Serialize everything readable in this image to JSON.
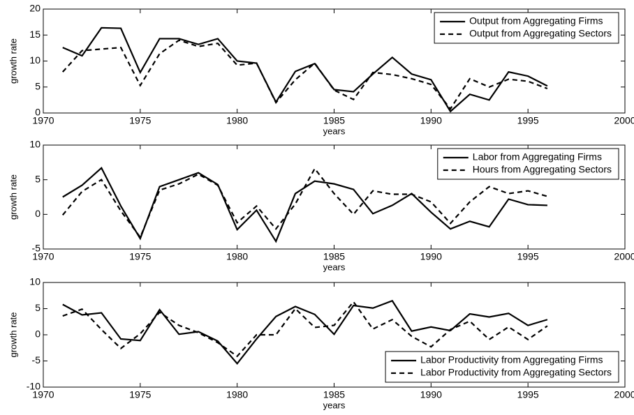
{
  "chart_data": [
    {
      "type": "line",
      "ylabel": "growth rate",
      "xlabel": "years",
      "legend": "upper right",
      "x": [
        1971,
        1972,
        1973,
        1974,
        1975,
        1976,
        1977,
        1978,
        1979,
        1980,
        1981,
        1982,
        1983,
        1984,
        1985,
        1986,
        1987,
        1988,
        1989,
        1990,
        1991,
        1992,
        1993,
        1994,
        1995,
        1996
      ],
      "xlim": [
        1970,
        2000
      ],
      "xticks": [
        1970,
        1975,
        1980,
        1985,
        1990,
        1995,
        2000
      ],
      "ylim": [
        0,
        20
      ],
      "yticks": [
        0,
        5,
        10,
        15,
        20
      ],
      "series": [
        {
          "name": "Output from Aggregating Firms",
          "color": "#000000",
          "linestyle": "solid",
          "values": [
            12.6,
            11,
            16.4,
            16.3,
            7.8,
            14.3,
            14.3,
            13.2,
            14.3,
            10,
            9.6,
            2.1,
            8,
            9.5,
            4.5,
            4.1,
            7.5,
            10.7,
            7.5,
            6.4,
            0.3,
            3.6,
            2.5,
            7.9,
            7.1,
            5.2
          ]
        },
        {
          "name": "Output from Aggregating Sectors",
          "color": "#000000",
          "linestyle": "dashed",
          "values": [
            7.9,
            12,
            12.3,
            12.6,
            5.3,
            11.4,
            14,
            12.8,
            13.4,
            9.2,
            9.6,
            2.0,
            6.4,
            9.6,
            4.4,
            2.6,
            7.8,
            7.4,
            6.6,
            5.5,
            0.8,
            6.6,
            5.0,
            6.5,
            6.1,
            4.7
          ]
        }
      ]
    },
    {
      "type": "line",
      "ylabel": "growth rate",
      "xlabel": "years",
      "legend": "upper right",
      "x": [
        1971,
        1972,
        1973,
        1974,
        1975,
        1976,
        1977,
        1978,
        1979,
        1980,
        1981,
        1982,
        1983,
        1984,
        1985,
        1986,
        1987,
        1988,
        1989,
        1990,
        1991,
        1992,
        1993,
        1994,
        1995,
        1996
      ],
      "xlim": [
        1970,
        2000
      ],
      "xticks": [
        1970,
        1975,
        1980,
        1985,
        1990,
        1995,
        2000
      ],
      "ylim": [
        -5,
        10
      ],
      "yticks": [
        -5,
        0,
        5,
        10
      ],
      "series": [
        {
          "name": "Labor from Aggregating Firms",
          "color": "#000000",
          "linestyle": "solid",
          "values": [
            2.5,
            4.2,
            6.7,
            1.2,
            -3.5,
            4.0,
            5.0,
            6.0,
            4.3,
            -2.2,
            0.6,
            -3.9,
            3.0,
            4.8,
            4.4,
            3.6,
            0.1,
            1.3,
            3.0,
            0.3,
            -2.1,
            -1.0,
            -1.8,
            2.2,
            1.4,
            1.3
          ]
        },
        {
          "name": "Hours from Aggregating Sectors",
          "color": "#000000",
          "linestyle": "dashed",
          "values": [
            -0.1,
            3.3,
            5.0,
            0.5,
            -3.3,
            3.5,
            4.4,
            5.8,
            4.2,
            -1.2,
            1.2,
            -2.1,
            1.5,
            6.6,
            3.0,
            0,
            3.4,
            2.9,
            2.9,
            1.8,
            -1.3,
            1.8,
            4.0,
            3.0,
            3.4,
            2.6
          ]
        }
      ]
    },
    {
      "type": "line",
      "ylabel": "growth rate",
      "xlabel": "years",
      "legend": "lower right",
      "x": [
        1971,
        1972,
        1973,
        1974,
        1975,
        1976,
        1977,
        1978,
        1979,
        1980,
        1981,
        1982,
        1983,
        1984,
        1985,
        1986,
        1987,
        1988,
        1989,
        1990,
        1991,
        1992,
        1993,
        1994,
        1995,
        1996
      ],
      "xlim": [
        1970,
        2000
      ],
      "xticks": [
        1970,
        1975,
        1980,
        1985,
        1990,
        1995,
        2000
      ],
      "ylim": [
        -10,
        10
      ],
      "yticks": [
        -10,
        -5,
        0,
        5,
        10
      ],
      "series": [
        {
          "name": "Labor Productivity from Aggregating Firms",
          "color": "#000000",
          "linestyle": "solid",
          "values": [
            5.8,
            3.8,
            4.2,
            -0.8,
            -1.1,
            4.8,
            0.1,
            0.6,
            -1.2,
            -5.5,
            -0.8,
            3.5,
            5.4,
            3.9,
            0.1,
            5.6,
            5.1,
            6.5,
            0.7,
            1.5,
            0.8,
            4.0,
            3.4,
            4.1,
            1.8,
            2.9
          ]
        },
        {
          "name": "Labor Productivity from Aggregating Sectors",
          "color": "#000000",
          "linestyle": "dashed",
          "values": [
            3.6,
            4.9,
            1.0,
            -2.6,
            0.2,
            4.3,
            1.8,
            0.4,
            -1.5,
            -4.1,
            0,
            0,
            5.0,
            1.4,
            1.8,
            6.3,
            1.1,
            2.9,
            -0.3,
            -2.3,
            1.0,
            2.6,
            -0.9,
            1.5,
            -0.9,
            1.7
          ]
        }
      ]
    }
  ]
}
